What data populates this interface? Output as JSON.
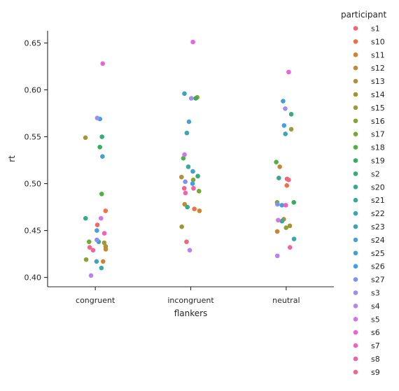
{
  "chart_data": {
    "type": "scatter",
    "title": "",
    "xlabel": "flankers",
    "ylabel": "rt",
    "categories": [
      "congruent",
      "incongruent",
      "neutral"
    ],
    "ylim": [
      0.39,
      0.663
    ],
    "yticks": [
      0.4,
      0.45,
      0.5,
      0.55,
      0.6,
      0.65
    ],
    "ytick_labels": [
      "0.40",
      "0.45",
      "0.50",
      "0.55",
      "0.60",
      "0.65"
    ],
    "grid": false,
    "legend": {
      "title": "participant",
      "placement": "right-outside",
      "labels": [
        "s1",
        "s10",
        "s11",
        "s12",
        "s13",
        "s14",
        "s15",
        "s16",
        "s17",
        "s18",
        "s19",
        "s2",
        "s20",
        "s21",
        "s22",
        "s23",
        "s24",
        "s25",
        "s26",
        "s27",
        "s3",
        "s4",
        "s5",
        "s6",
        "s7",
        "s8",
        "s9"
      ]
    },
    "colors": [
      "#f0666f",
      "#ee7045",
      "#d1822f",
      "#c18a33",
      "#b1903a",
      "#a39532",
      "#9a9b3e",
      "#89a332",
      "#76a931",
      "#50b046",
      "#35ad5e",
      "#36ab7c",
      "#37a98d",
      "#39a79d",
      "#3ba6ab",
      "#3fa3bc",
      "#4aa0d6",
      "#41a0d1",
      "#3f9fea",
      "#7f94f0",
      "#9f8df0",
      "#b883ef",
      "#d274ea",
      "#ec62dd",
      "#f163b8",
      "#f2649d",
      "#f26686"
    ],
    "series": [
      {
        "name": "s1",
        "values": [
          0.456,
          0.438,
          0.505
        ]
      },
      {
        "name": "s10",
        "values": [
          0.471,
          0.473,
          0.498
        ]
      },
      {
        "name": "s11",
        "values": [
          0.417,
          0.471,
          0.449
        ]
      },
      {
        "name": "s12",
        "values": [
          0.43,
          0.478,
          0.518
        ]
      },
      {
        "name": "s13",
        "values": [
          0.433,
          0.507,
          0.462
        ]
      },
      {
        "name": "s14",
        "values": [
          0.549,
          0.454,
          0.455
        ]
      },
      {
        "name": "s15",
        "values": [
          0.437,
          0.592,
          0.558
        ]
      },
      {
        "name": "s16",
        "values": [
          0.419,
          0.504,
          0.453
        ]
      },
      {
        "name": "s17",
        "values": [
          0.438,
          0.492,
          0.48
        ]
      },
      {
        "name": "s18",
        "values": [
          0.489,
          0.527,
          0.523
        ]
      },
      {
        "name": "s19",
        "values": [
          0.539,
          0.591,
          0.48
        ]
      },
      {
        "name": "s2",
        "values": [
          0.55,
          0.508,
          0.574
        ]
      },
      {
        "name": "s20",
        "values": [
          0.463,
          0.475,
          0.506
        ]
      },
      {
        "name": "s21",
        "values": [
          0.438,
          0.518,
          0.46
        ]
      },
      {
        "name": "s22",
        "values": [
          0.41,
          0.554,
          0.441
        ]
      },
      {
        "name": "s23",
        "values": [
          0.417,
          0.596,
          0.553
        ]
      },
      {
        "name": "s24",
        "values": [
          0.45,
          0.566,
          0.477
        ]
      },
      {
        "name": "s25",
        "values": [
          0.529,
          0.513,
          0.588
        ]
      },
      {
        "name": "s26",
        "values": [
          0.569,
          0.5,
          0.562
        ]
      },
      {
        "name": "s27",
        "values": [
          0.44,
          0.502,
          0.478
        ]
      },
      {
        "name": "s3",
        "values": [
          0.57,
          0.591,
          0.58
        ]
      },
      {
        "name": "s4",
        "values": [
          0.402,
          0.429,
          0.423
        ]
      },
      {
        "name": "s5",
        "values": [
          0.463,
          0.531,
          0.461
        ]
      },
      {
        "name": "s6",
        "values": [
          0.628,
          0.651,
          0.619
        ]
      },
      {
        "name": "s7",
        "values": [
          0.447,
          0.49,
          0.477
        ]
      },
      {
        "name": "s8",
        "values": [
          0.429,
          0.495,
          0.432
        ]
      },
      {
        "name": "s9",
        "values": [
          0.432,
          0.495,
          0.504
        ]
      }
    ]
  }
}
